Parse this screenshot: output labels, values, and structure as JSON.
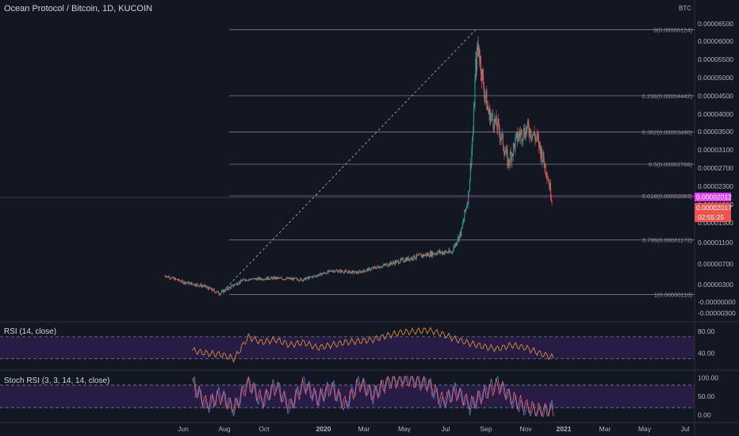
{
  "header": {
    "title": "Ocean Protocol / Bitcoin, 1D, KUCOIN",
    "currency": "BTC"
  },
  "indicators": {
    "rsi_label": "RSI (14, close)",
    "stoch_label": "Stoch RSI (3, 3, 14, 14, close)"
  },
  "badges": {
    "price": "0.00002012",
    "close": "0.00002017",
    "countdown": "02:55:25"
  },
  "colors": {
    "background": "#131722",
    "up": "#26a69a",
    "down": "#ef5350",
    "rsi_line": "#d68c3a",
    "stoch_k": "#3b7dd8",
    "stoch_d": "#ef5350",
    "band_fill": "#5b2ba3",
    "price_badge": "#e040fb",
    "close_badge": "#ef5350",
    "fib_line": "#787b86"
  },
  "chart_data": [
    {
      "type": "candlestick",
      "title": "Ocean Protocol / Bitcoin, 1D, KUCOIN",
      "ylabel": "BTC",
      "x_ticks": [
        "Jun",
        "Aug",
        "Oct",
        "2020",
        "Mar",
        "May",
        "Jul",
        "Sep",
        "Nov",
        "2021",
        "Mar",
        "May",
        "Jul"
      ],
      "y_ticks": [
        "0.00006500",
        "0.00006000",
        "0.00005500",
        "0.00005000",
        "0.00004500",
        "0.00004000",
        "0.00003500",
        "0.00003100",
        "0.00002700",
        "0.00002300",
        "0.00001900",
        "0.00001500",
        "0.00001100",
        "0.00000700",
        "0.00000300",
        "-0.00000000",
        "-0.00000300"
      ],
      "series": [
        {
          "name": "OCEAN/BTC",
          "x": [
            "2019-05-05",
            "2019-06-01",
            "2019-07-01",
            "2019-07-25",
            "2019-09-01",
            "2019-10-15",
            "2019-12-01",
            "2020-01-15",
            "2020-02-20",
            "2020-04-01",
            "2020-05-15",
            "2020-06-20",
            "2020-07-10",
            "2020-07-25",
            "2020-08-05",
            "2020-08-12",
            "2020-08-16",
            "2020-08-20",
            "2020-08-28",
            "2020-09-05",
            "2020-09-20",
            "2020-10-05",
            "2020-10-20",
            "2020-11-05",
            "2020-11-20",
            "2020-12-05",
            "2020-12-13"
          ],
          "close": [
            4.5e-06,
            3.2e-06,
            2.5e-06,
            1.3e-06,
            3.7e-06,
            4e-06,
            3.7e-06,
            5.5e-06,
            5.1e-06,
            6.6e-06,
            8.2e-06,
            9.2e-06,
            9.2e-06,
            1.35e-05,
            2.1e-05,
            3.5e-05,
            5.2e-05,
            5.8e-05,
            4.7e-05,
            4e-05,
            3.6e-05,
            2.8e-05,
            3.4e-05,
            3.6e-05,
            3.3e-05,
            2.6e-05,
            2.02e-05
          ]
        }
      ],
      "fibonacci": [
        {
          "level": "0",
          "value": 6.124e-05,
          "label": "0(0.00006124)"
        },
        {
          "level": "0.236",
          "value": 4.442e-05,
          "label": "0.236(0.00004442)"
        },
        {
          "level": "0.382",
          "value": 3.49e-05,
          "label": "0.382(0.00003490)"
        },
        {
          "level": "0.5",
          "value": 2.768e-05,
          "label": "0.5(0.00002768)"
        },
        {
          "level": "0.618",
          "value": 2.083e-05,
          "label": "0.618(0.00002083)"
        },
        {
          "level": "0.786",
          "value": 1.172e-05,
          "label": "0.786(0.00001172)"
        },
        {
          "level": "1",
          "value": 1.1e-06,
          "label": "1(0.00000110)"
        }
      ],
      "trend_line": {
        "from_date": "2019-07-25",
        "from_value": 1.1e-06,
        "to_date": "2020-08-16",
        "to_value": 6.124e-05
      }
    },
    {
      "type": "line",
      "title": "RSI (14, close)",
      "y_ticks": [
        "80.00",
        "40.00"
      ],
      "bands": [
        30,
        70
      ],
      "series": [
        {
          "name": "RSI",
          "values": [
            45,
            40,
            38,
            30,
            70,
            60,
            65,
            55,
            60,
            50,
            55,
            60,
            62,
            65,
            72,
            78,
            80,
            82,
            75,
            65,
            58,
            52,
            48,
            55,
            50,
            40,
            32
          ]
        }
      ]
    },
    {
      "type": "line",
      "title": "Stoch RSI (3, 3, 14, 14, close)",
      "y_ticks": [
        "100.00",
        "50.00",
        "0.00"
      ],
      "bands": [
        20,
        80
      ],
      "series": [
        {
          "name": "K",
          "values": [
            90,
            20,
            60,
            10,
            95,
            30,
            85,
            15,
            90,
            40,
            80,
            20,
            95,
            50,
            90,
            100,
            95,
            85,
            30,
            70,
            20,
            60,
            90,
            40,
            15,
            5,
            20
          ]
        },
        {
          "name": "D",
          "values": [
            80,
            30,
            50,
            20,
            85,
            40,
            75,
            25,
            80,
            45,
            70,
            30,
            85,
            55,
            85,
            95,
            92,
            80,
            40,
            60,
            30,
            55,
            80,
            45,
            25,
            10,
            15
          ]
        }
      ]
    }
  ]
}
